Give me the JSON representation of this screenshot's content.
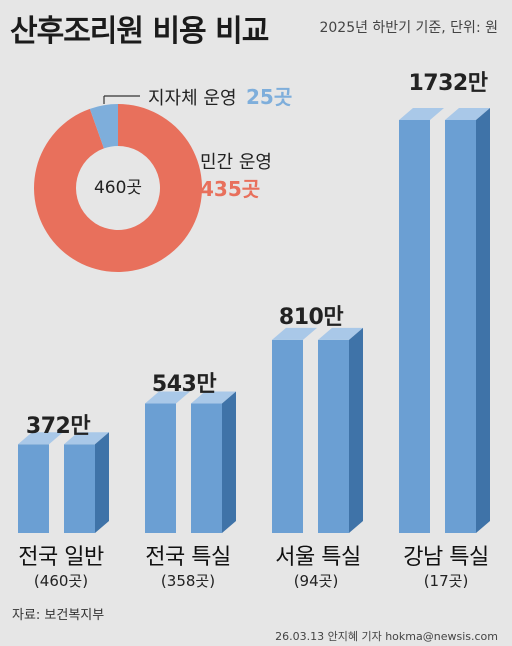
{
  "header": {
    "title": "산후조리원 비용 비교",
    "subtitle": "2025년 하반기 기준, 단위: 원"
  },
  "donut": {
    "center_label": "460곳",
    "public": {
      "label": "지자체 운영",
      "value_text": "25곳",
      "value": 25,
      "color": "#7eaedb"
    },
    "private": {
      "label": "민간 운영",
      "value_text": "435곳",
      "value": 435,
      "color": "#e8705c"
    }
  },
  "chart_data": {
    "type": "bar",
    "categories": [
      "전국 일반",
      "전국 특실",
      "서울 특실",
      "강남 특실"
    ],
    "sub_labels": [
      "(460곳)",
      "(358곳)",
      "(94곳)",
      "(17곳)"
    ],
    "values": [
      372,
      543,
      810,
      1732
    ],
    "value_labels": [
      "372만",
      "543만",
      "810만",
      "1732만"
    ],
    "unit": "만 원",
    "colors": {
      "front": "#6b9fd3",
      "top": "#a9c8e8",
      "side": "#3f73a8"
    }
  },
  "footer": {
    "source": "자료: 보건복지부",
    "credit": "26.03.13 안지혜 기자 hokma@newsis.com"
  }
}
